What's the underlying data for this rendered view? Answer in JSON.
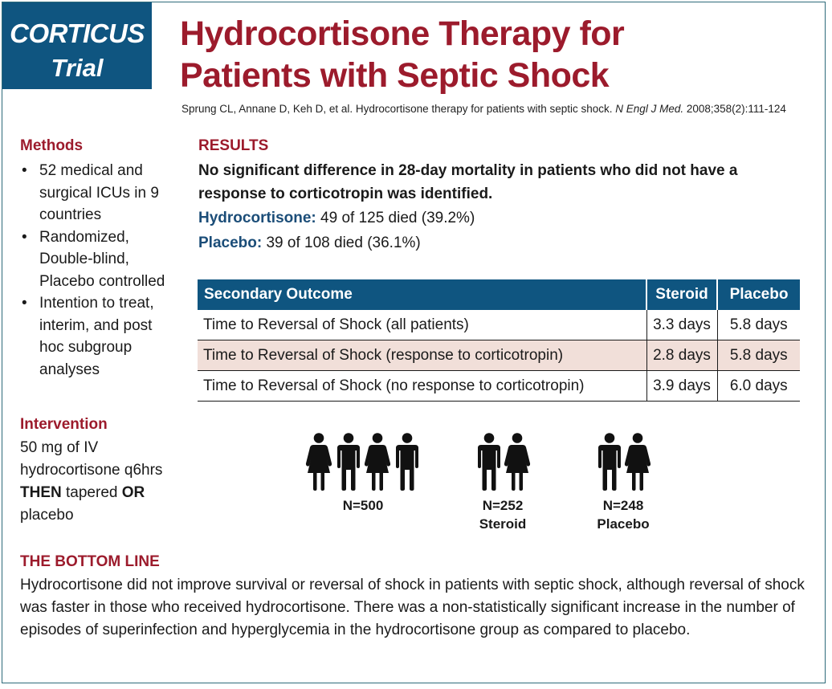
{
  "tag": {
    "line1": "CORTICUS",
    "line2": "Trial"
  },
  "title": {
    "line1": "Hydrocortisone Therapy for",
    "line2": "Patients with Septic Shock"
  },
  "citation": {
    "text": "Sprung CL, Annane D, Keh D, et al. Hydrocortisone therapy for patients with septic shock. ",
    "journal": "N Engl J Med.",
    "ref": " 2008;358(2):111-124"
  },
  "methods": {
    "heading": "Methods",
    "items": [
      "52 medical and surgical ICUs in 9 countries",
      "Randomized, Double-blind, Placebo controlled",
      "Intention to treat, interim, and post hoc subgroup analyses"
    ]
  },
  "intervention": {
    "heading": "Intervention",
    "part1": "50 mg of IV hydrocortisone q6hrs ",
    "then": "THEN",
    "part2": " tapered ",
    "or": "OR",
    "part3": " placebo"
  },
  "results": {
    "heading": "RESULTS",
    "lead": "No significant difference in 28-day mortality in patients who did not have a response to corticotropin was identified.",
    "hydrocortisone_label": "Hydrocortisone:",
    "hydrocortisone_value": " 49 of 125 died (39.2%)",
    "placebo_label": "Placebo:",
    "placebo_value": " 39 of 108 died (36.1%)"
  },
  "table": {
    "headers": [
      "Secondary Outcome",
      "Steroid",
      "Placebo"
    ],
    "rows": [
      [
        "Time to Reversal of Shock (all patients)",
        "3.3 days",
        "5.8 days"
      ],
      [
        "Time to Reversal of Shock (response to corticotropin)",
        "2.8 days",
        "5.8 days"
      ],
      [
        "Time to Reversal of Shock (no response to corticotropin)",
        "3.9 days",
        "6.0 days"
      ]
    ],
    "shade_color": "#f1dfd9",
    "header_color": "#0f5580"
  },
  "groups": [
    {
      "n": "N=500",
      "label": "",
      "icon": "group-of-four-people-icon"
    },
    {
      "n": "N=252",
      "label": "Steroid",
      "icon": "pair-of-people-icon"
    },
    {
      "n": "N=248",
      "label": "Placebo",
      "icon": "pair-of-people-icon"
    }
  ],
  "bottom_line": {
    "heading": "THE BOTTOM LINE",
    "text": "Hydrocortisone did not improve survival or reversal of shock in patients with septic shock, although reversal of shock was faster in those who received hydrocortisone. There was a non-statistically significant increase in the number of episodes of superinfection and hyperglycemia in the hydrocortisone group as compared to placebo."
  },
  "colors": {
    "accent_red": "#9c1b2c",
    "accent_blue": "#0f5580",
    "label_blue": "#1b4d78"
  }
}
